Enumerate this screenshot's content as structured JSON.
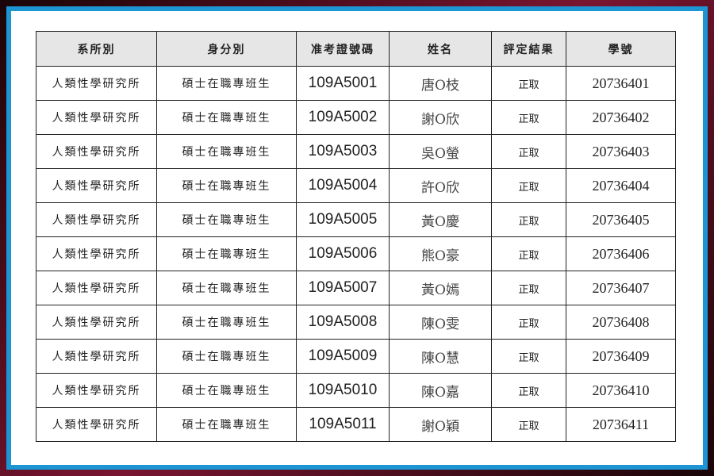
{
  "colors": {
    "frame_outer": "#5a0f1e",
    "frame_blue": "#1e95d3",
    "header_bg": "#e6e6e6"
  },
  "headers": [
    "系所別",
    "身分別",
    "准考證號碼",
    "姓名",
    "評定結果",
    "學號"
  ],
  "rows": [
    [
      "人類性學研究所",
      "碩士在職專班生",
      "109A5001",
      "唐O枝",
      "正取",
      "20736401"
    ],
    [
      "人類性學研究所",
      "碩士在職專班生",
      "109A5002",
      "謝O欣",
      "正取",
      "20736402"
    ],
    [
      "人類性學研究所",
      "碩士在職專班生",
      "109A5003",
      "吳O螢",
      "正取",
      "20736403"
    ],
    [
      "人類性學研究所",
      "碩士在職專班生",
      "109A5004",
      "許O欣",
      "正取",
      "20736404"
    ],
    [
      "人類性學研究所",
      "碩士在職專班生",
      "109A5005",
      "黃O慶",
      "正取",
      "20736405"
    ],
    [
      "人類性學研究所",
      "碩士在職專班生",
      "109A5006",
      "熊O豪",
      "正取",
      "20736406"
    ],
    [
      "人類性學研究所",
      "碩士在職專班生",
      "109A5007",
      "黃O嫣",
      "正取",
      "20736407"
    ],
    [
      "人類性學研究所",
      "碩士在職專班生",
      "109A5008",
      "陳O雯",
      "正取",
      "20736408"
    ],
    [
      "人類性學研究所",
      "碩士在職專班生",
      "109A5009",
      "陳O慧",
      "正取",
      "20736409"
    ],
    [
      "人類性學研究所",
      "碩士在職專班生",
      "109A5010",
      "陳O嘉",
      "正取",
      "20736410"
    ],
    [
      "人類性學研究所",
      "碩士在職專班生",
      "109A5011",
      "謝O穎",
      "正取",
      "20736411"
    ]
  ]
}
